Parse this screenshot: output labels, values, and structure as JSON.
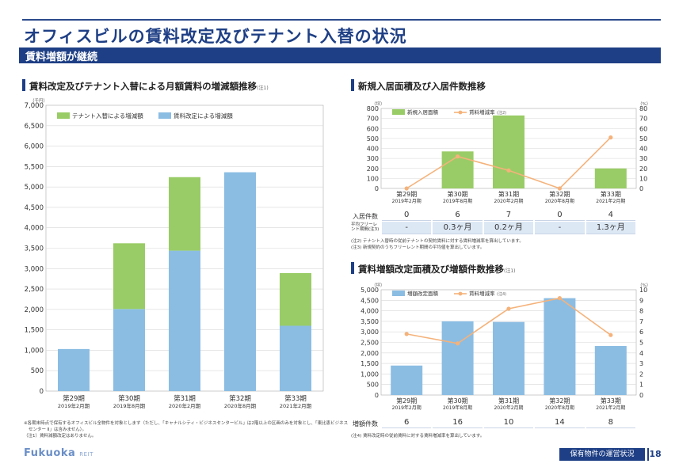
{
  "header": {
    "title": "オフィスビルの賃料改定及びテナント入替の状況",
    "subtitle": "賃料増額が継続"
  },
  "colors": {
    "navy": "#1e3f85",
    "green": "#99cc66",
    "blue": "#8bbde3",
    "orange": "#f5b27a"
  },
  "chart_data": [
    {
      "type": "bar",
      "id": "rent-increase",
      "title": "賃料改定及びテナント入替による月額賃料の増減額推移",
      "title_note": "(注1)",
      "unit_label": "（千円）",
      "categories": [
        [
          "第29期",
          "2019年2月期"
        ],
        [
          "第30期",
          "2019年8月期"
        ],
        [
          "第31期",
          "2020年2月期"
        ],
        [
          "第32期",
          "2020年8月期"
        ],
        [
          "第33期",
          "2021年2月期"
        ]
      ],
      "series": [
        {
          "name": "賃料改定による増減額",
          "color": "#8bbde3",
          "values": [
            1030,
            2010,
            3440,
            5360,
            1600
          ]
        },
        {
          "name": "テナント入替による増減額",
          "color": "#99cc66",
          "values": [
            0,
            1610,
            1800,
            0,
            1290
          ]
        }
      ],
      "stacked": true,
      "ylim": [
        0,
        7000
      ],
      "yticks": [
        "0",
        "500",
        "1,000",
        "1,500",
        "2,000",
        "2,500",
        "3,000",
        "3,500",
        "4,000",
        "4,500",
        "5,000",
        "5,500",
        "6,000",
        "6,500",
        "7,000"
      ],
      "legend": [
        "テナント入替による増減額",
        "賃料改定による増減額"
      ]
    },
    {
      "type": "bar",
      "id": "new-leases",
      "title": "新規入居面積及び入居件数推移",
      "unit_left": "（坪）",
      "unit_right": "（%）",
      "categories": [
        [
          "第29期",
          "2019年2月期"
        ],
        [
          "第30期",
          "2019年8月期"
        ],
        [
          "第31期",
          "2020年2月期"
        ],
        [
          "第32期",
          "2020年8月期"
        ],
        [
          "第33期",
          "2021年2月期"
        ]
      ],
      "bar_series": {
        "name": "新規入居面積",
        "color": "#99cc66",
        "values": [
          0,
          370,
          730,
          0,
          200
        ]
      },
      "line_series": {
        "name": "賃料増減率",
        "note": "(注2)",
        "color": "#f5b27a",
        "values": [
          0,
          32,
          18,
          0,
          51
        ]
      },
      "ylim": [
        0,
        800
      ],
      "y2lim": [
        0,
        80
      ],
      "yticks": [
        "0",
        "100",
        "200",
        "300",
        "400",
        "500",
        "600",
        "700",
        "800"
      ],
      "y2ticks": [
        "0",
        "10",
        "20",
        "30",
        "40",
        "50",
        "60",
        "70",
        "80"
      ],
      "table": {
        "row1_label": "入居件数",
        "row1": [
          "0",
          "6",
          "7",
          "0",
          "4"
        ],
        "row2_label": "平均フリーレント期間(注3)",
        "row2": [
          "-",
          "0.3ヶ月",
          "0.2ヶ月",
          "-",
          "1.3ヶ月"
        ]
      },
      "notes": [
        "(注2) テナント入替時の従前テナントの契約賃料に対する賃料増減率を算出しています。",
        "(注3) 新規契約のうちフリーレント期間の平均値を算出しています。"
      ]
    },
    {
      "type": "bar",
      "id": "rent-revision",
      "title": "賃料増額改定面積及び増額件数推移",
      "title_note": "(注1)",
      "unit_left": "（坪）",
      "unit_right": "（%）",
      "categories": [
        [
          "第29期",
          "2019年2月期"
        ],
        [
          "第30期",
          "2019年8月期"
        ],
        [
          "第31期",
          "2020年2月期"
        ],
        [
          "第32期",
          "2020年8月期"
        ],
        [
          "第33期",
          "2021年2月期"
        ]
      ],
      "bar_series": {
        "name": "増額改定面積",
        "color": "#8bbde3",
        "values": [
          1400,
          3500,
          3470,
          4600,
          2330
        ]
      },
      "line_series": {
        "name": "賃料増減率",
        "note": "(注4)",
        "color": "#f5b27a",
        "values": [
          5.8,
          4.9,
          8.2,
          9.2,
          5.7
        ]
      },
      "ylim": [
        0,
        5000
      ],
      "y2lim": [
        0,
        10
      ],
      "yticks": [
        "0",
        "500",
        "1,000",
        "1,500",
        "2,000",
        "2,500",
        "3,000",
        "3,500",
        "4,000",
        "4,500",
        "5,000"
      ],
      "y2ticks": [
        "0",
        "1",
        "2",
        "3",
        "4",
        "5",
        "6",
        "7",
        "8",
        "9",
        "10"
      ],
      "table": {
        "row1_label": "増額件数",
        "row1": [
          "6",
          "16",
          "10",
          "14",
          "8"
        ]
      },
      "notes": [
        "(注4) 賃料改定時の従前賃料に対する賃料増減率を算出しています。"
      ]
    }
  ],
  "left_notes": [
    "※各期末時点で保有するオフィスビル全物件を対象とします（ただし、「キャナルシティ・ビジネスセンタービル」は2階以上の区画のみを対象とし、「東比恵ビジネス",
    "センター Ⅱ」は含みません）。",
    "（注1）賃料減額改定はありません。"
  ],
  "footer": {
    "logo": "Fukuoka",
    "logo_sub": "REIT",
    "section": "保有物件の運営状況",
    "page": "18"
  }
}
